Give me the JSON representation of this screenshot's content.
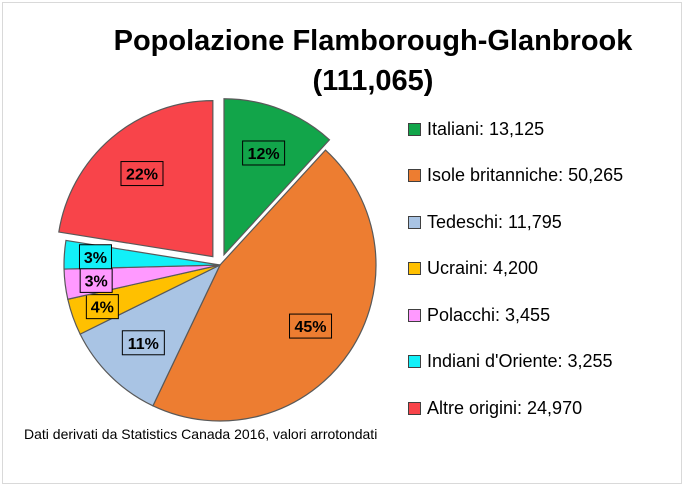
{
  "chart_data": {
    "type": "pie",
    "title_lines": [
      "Popolazione Flamborough-Glanbrook",
      "(111,065)"
    ],
    "slices": [
      {
        "label": "Italiani",
        "value": 13125,
        "value_text": "13,125",
        "percent_label": "12%",
        "color": "#12a54a",
        "exploded": true
      },
      {
        "label": "Isole britanniche",
        "value": 50265,
        "value_text": "50,265",
        "percent_label": "45%",
        "color": "#ed7d31",
        "exploded": false
      },
      {
        "label": "Tedeschi",
        "value": 11795,
        "value_text": "11,795",
        "percent_label": "11%",
        "color": "#a9c4e4",
        "exploded": false
      },
      {
        "label": "Ucraini",
        "value": 4200,
        "value_text": "4,200",
        "percent_label": "4%",
        "color": "#ffc000",
        "exploded": false
      },
      {
        "label": "Polacchi",
        "value": 3455,
        "value_text": "3,455",
        "percent_label": "3%",
        "color": "#ff99ff",
        "exploded": false
      },
      {
        "label": "Indiani d'Oriente",
        "value": 3255,
        "value_text": "3,255",
        "percent_label": "3%",
        "color": "#12f0f8",
        "exploded": false
      },
      {
        "label": "Altre origini",
        "value": 24970,
        "value_text": "24,970",
        "percent_label": "22%",
        "color": "#f8444a",
        "exploded": true
      }
    ],
    "legend_position": "right"
  },
  "source_note": "Dati derivati da Statistics Canada 2016, valori arrotondati"
}
